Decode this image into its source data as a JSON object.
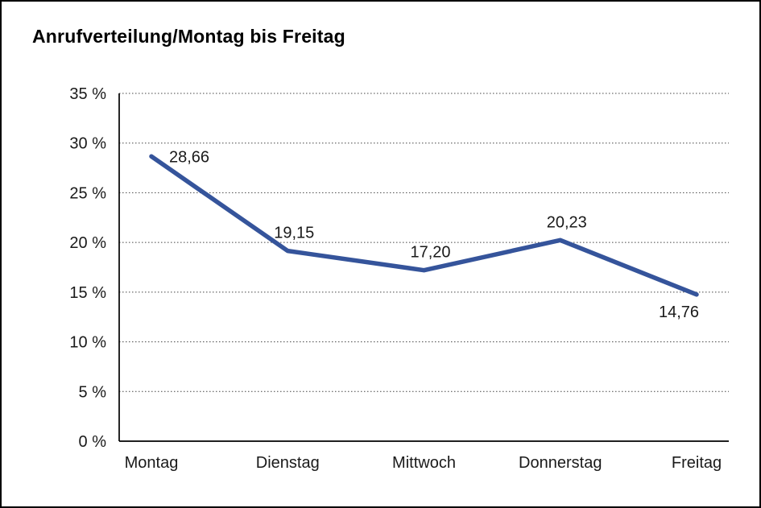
{
  "chart_data": {
    "type": "line",
    "title": "Anrufverteilung/Montag bis Freitag",
    "categories": [
      "Montag",
      "Dienstag",
      "Mittwoch",
      "Donnerstag",
      "Freitag"
    ],
    "values": [
      28.66,
      19.15,
      17.2,
      20.23,
      14.76
    ],
    "value_labels": [
      "28,66",
      "19,15",
      "17,20",
      "20,23",
      "14,76"
    ],
    "label_positions": [
      "right",
      "above",
      "above",
      "above",
      "below"
    ],
    "xlabel": "",
    "ylabel": "",
    "ylim": [
      0,
      35
    ],
    "ytick_step": 5,
    "ytick_labels": [
      "0 %",
      "5 %",
      "10 %",
      "15 %",
      "20 %",
      "25 %",
      "30 %",
      "35 %"
    ],
    "grid": "dotted-horizontal",
    "legend": "none",
    "line_color": "#35549b",
    "axis_color": "#000000",
    "grid_color": "#444444",
    "background_color": "#ffffff"
  }
}
